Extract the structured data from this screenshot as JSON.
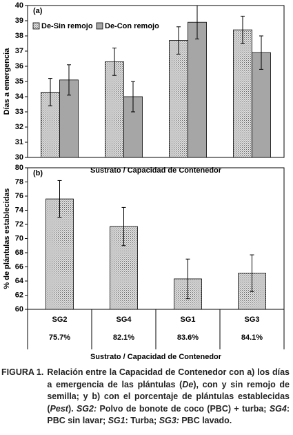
{
  "chart_data": [
    {
      "type": "bar",
      "label": "(a)",
      "ylabel": "Días a emergencia",
      "xlabel": "Sustrato / Capacidad de Contenedor",
      "categories": [
        null,
        null,
        null,
        null
      ],
      "series": [
        {
          "name": "De-Sin remojo",
          "color": "#e0e0e0",
          "pattern": "dots",
          "values": [
            34.3,
            36.3,
            37.7,
            38.4
          ],
          "errors": [
            0.9,
            0.9,
            0.9,
            0.9
          ]
        },
        {
          "name": "De-Con remojo",
          "color": "#a6a6a6",
          "values": [
            35.1,
            34.0,
            38.9,
            36.9
          ],
          "errors": [
            1.0,
            1.0,
            1.1,
            1.1
          ]
        }
      ],
      "ylim": [
        30,
        40
      ],
      "yticks": [
        30,
        31,
        32,
        33,
        34,
        35,
        36,
        37,
        38,
        39,
        40
      ],
      "legend": "upper left"
    },
    {
      "type": "bar",
      "label": "(b)",
      "ylabel": "% de plántulas establecidas",
      "xlabel": "Sustrato / Capacidad de Contenedor",
      "categories": [
        "SG2",
        "SG4",
        "SG1",
        "SG3"
      ],
      "table_row": [
        "75.7%",
        "82.1%",
        "83.6%",
        "84.1%"
      ],
      "series": [
        {
          "color": "#e0e0e0",
          "pattern": "dots",
          "values": [
            75.6,
            71.7,
            64.3,
            65.1
          ],
          "errors": [
            2.6,
            2.7,
            2.8,
            2.6
          ]
        }
      ],
      "ylim": [
        60,
        80
      ],
      "yticks": [
        60,
        62,
        64,
        66,
        68,
        70,
        72,
        74,
        76,
        78,
        80
      ]
    }
  ],
  "caption": {
    "label": "FIGURA 1.",
    "segments": [
      "Relación entre la Capacidad de Contenedor con a) los días a emergencia de las plántulas (",
      "De",
      "), con y sin remojo de semilla; y b) con el porcentaje de plántulas establecidas (",
      "Pest",
      "). ",
      "SG2:",
      " Polvo de bonote de coco (PBC) + turba; ",
      "SG4",
      ": PBC sin lavar; ",
      "SG1",
      ": Turba; ",
      "SG3:",
      " PBC lavado."
    ]
  }
}
